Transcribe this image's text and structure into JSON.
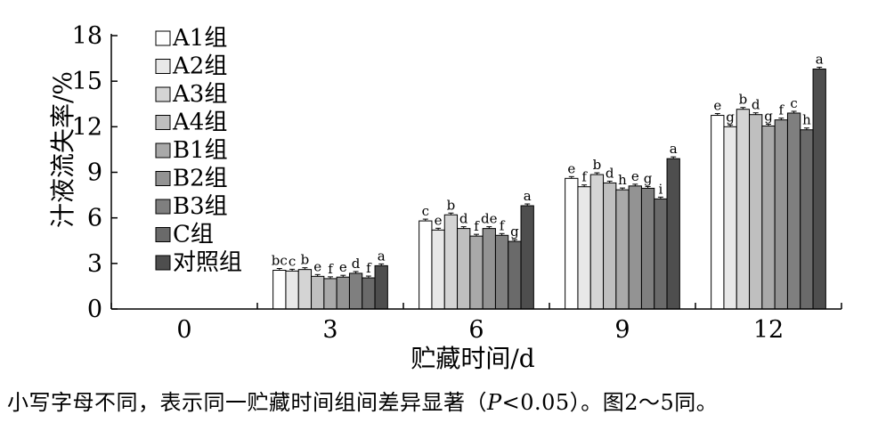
{
  "chart_data": {
    "type": "bar",
    "xlabel": "贮藏时间/d",
    "ylabel": "汁液流失率/%",
    "ylim": [
      0,
      18
    ],
    "yticks": [
      0,
      3,
      6,
      9,
      12,
      15,
      18
    ],
    "categories": [
      "0",
      "3",
      "6",
      "9",
      "12"
    ],
    "legend_position": "top-left",
    "series": [
      {
        "name": "A1组",
        "color": "#ffffff",
        "values": [
          0,
          2.55,
          5.8,
          8.6,
          12.75
        ],
        "labels": [
          "",
          "bc",
          "c",
          "e",
          "e"
        ]
      },
      {
        "name": "A2组",
        "color": "#e8e8e8",
        "values": [
          0,
          2.5,
          5.2,
          8.05,
          12.0
        ],
        "labels": [
          "",
          "c",
          "e",
          "f",
          "g"
        ]
      },
      {
        "name": "A3组",
        "color": "#d4d4d4",
        "values": [
          0,
          2.6,
          6.2,
          8.85,
          13.15
        ],
        "labels": [
          "",
          "b",
          "b",
          "b",
          "b"
        ]
      },
      {
        "name": "A4组",
        "color": "#bfbfbf",
        "values": [
          0,
          2.15,
          5.3,
          8.3,
          12.8
        ],
        "labels": [
          "",
          "e",
          "d",
          "d",
          "d"
        ]
      },
      {
        "name": "B1组",
        "color": "#a9a9a9",
        "values": [
          0,
          2.0,
          4.8,
          7.85,
          12.05
        ],
        "labels": [
          "",
          "f",
          "f",
          "h",
          "g"
        ]
      },
      {
        "name": "B2组",
        "color": "#939393",
        "values": [
          0,
          2.1,
          5.3,
          8.1,
          12.45
        ],
        "labels": [
          "",
          "e",
          "de",
          "e",
          "f"
        ]
      },
      {
        "name": "B3组",
        "color": "#7f7f7f",
        "values": [
          0,
          2.35,
          4.85,
          7.95,
          12.9
        ],
        "labels": [
          "",
          "d",
          "f",
          "g",
          "c"
        ]
      },
      {
        "name": "C组",
        "color": "#6a6a6a",
        "values": [
          0,
          2.05,
          4.45,
          7.25,
          11.8
        ],
        "labels": [
          "",
          "f",
          "g",
          "i",
          "h"
        ]
      },
      {
        "name": "对照组",
        "color": "#4e4e4e",
        "values": [
          0,
          2.85,
          6.8,
          9.9,
          15.8
        ],
        "labels": [
          "",
          "a",
          "a",
          "a",
          "a"
        ]
      }
    ]
  },
  "note": {
    "before_p": "小写字母不同，表示同一贮藏时间组间差异显著（",
    "p": "P",
    "after_p": "<0.05）。图2～5同。"
  }
}
